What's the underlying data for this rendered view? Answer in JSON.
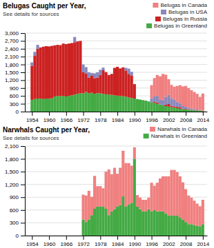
{
  "chart_data": [
    {
      "type": "bar",
      "stacked": true,
      "grid": true,
      "legend": "upper right",
      "title": "Belugas Caught per Year,",
      "subtitle": "See details for sources",
      "x": [
        1954,
        1955,
        1956,
        1957,
        1958,
        1959,
        1960,
        1961,
        1962,
        1963,
        1964,
        1965,
        1966,
        1967,
        1968,
        1969,
        1970,
        1971,
        1972,
        1973,
        1974,
        1975,
        1976,
        1977,
        1978,
        1979,
        1980,
        1981,
        1982,
        1983,
        1984,
        1985,
        1986,
        1987,
        1988,
        1989,
        1990,
        1991,
        1992,
        1993,
        1994,
        1995,
        1996,
        1997,
        1998,
        1999,
        2000,
        2001,
        2002,
        2003,
        2004,
        2005,
        2006,
        2007,
        2008,
        2009,
        2010,
        2011,
        2012,
        2013,
        2014
      ],
      "xlim": [
        1951.5,
        2015.5
      ],
      "xticks": [
        1954,
        1960,
        1966,
        1972,
        1978,
        1984,
        1990,
        1996,
        2002,
        2008,
        2014
      ],
      "ylim": [
        0,
        3000
      ],
      "yticks": [
        0,
        300,
        600,
        900,
        {
          "value": 1200,
          "label": "1,200"
        },
        {
          "value": 1500,
          "label": "1,500"
        },
        {
          "value": 1800,
          "label": "1,800"
        },
        {
          "value": 2100,
          "label": "2,100"
        },
        {
          "value": 2400,
          "label": "2,400"
        },
        {
          "value": 2700,
          "label": "2,700"
        },
        {
          "value": 3000,
          "label": "3,000"
        }
      ],
      "series": [
        {
          "name": "Belugas in Greenland",
          "color": "#44aa44",
          "values": [
            450,
            480,
            500,
            500,
            480,
            500,
            490,
            510,
            580,
            600,
            590,
            600,
            580,
            600,
            620,
            650,
            680,
            700,
            700,
            750,
            700,
            720,
            680,
            700,
            700,
            680,
            660,
            650,
            640,
            620,
            610,
            600,
            590,
            570,
            540,
            520,
            500,
            480,
            460,
            440,
            420,
            390,
            360,
            330,
            300,
            270,
            240,
            210,
            190,
            170,
            150,
            130,
            110,
            90,
            80,
            70,
            60,
            50,
            40,
            30,
            20
          ]
        },
        {
          "name": "Belugas in Russia",
          "color": "#cc2222",
          "values": [
            1300,
            1650,
            1900,
            1950,
            2000,
            2000,
            2000,
            2000,
            1950,
            1950,
            1950,
            2000,
            2000,
            2000,
            2000,
            2000,
            2000,
            2000,
            800,
            700,
            600,
            650,
            600,
            600,
            700,
            900,
            850,
            750,
            800,
            1050,
            1100,
            1050,
            1100,
            1000,
            900,
            850,
            550,
            0,
            0,
            0,
            0,
            0,
            0,
            50,
            50,
            0,
            0,
            50,
            100,
            50,
            50,
            50,
            50,
            20,
            20,
            20,
            10,
            10,
            10,
            10,
            10
          ]
        },
        {
          "name": "Belugas in USA",
          "color": "#8888bb",
          "values": [
            130,
            150,
            150,
            0,
            0,
            0,
            0,
            0,
            0,
            0,
            0,
            0,
            0,
            0,
            0,
            200,
            0,
            0,
            300,
            250,
            200,
            100,
            180,
            200,
            200,
            100,
            0,
            0,
            0,
            0,
            0,
            0,
            0,
            100,
            200,
            150,
            0,
            0,
            0,
            0,
            0,
            0,
            150,
            200,
            250,
            180,
            200,
            300,
            350,
            300,
            250,
            200,
            150,
            100,
            80,
            60,
            50,
            40,
            30,
            20,
            10
          ]
        },
        {
          "name": "Belugas in Canada",
          "color": "#f08080",
          "values": [
            0,
            0,
            0,
            0,
            0,
            0,
            0,
            0,
            0,
            0,
            0,
            0,
            0,
            0,
            0,
            0,
            0,
            0,
            0,
            0,
            0,
            0,
            0,
            0,
            0,
            0,
            0,
            0,
            0,
            0,
            0,
            0,
            0,
            0,
            0,
            0,
            0,
            0,
            0,
            0,
            0,
            0,
            500,
            700,
            800,
            900,
            1000,
            850,
            600,
            500,
            500,
            600,
            700,
            750,
            800,
            750,
            700,
            650,
            600,
            500,
            650
          ]
        }
      ]
    },
    {
      "type": "bar",
      "stacked": true,
      "grid": true,
      "legend": "upper right",
      "title": "Narwhals Caught per Year,",
      "subtitle": "See details for sources",
      "x": [
        1954,
        1955,
        1956,
        1957,
        1958,
        1959,
        1960,
        1961,
        1962,
        1963,
        1964,
        1965,
        1966,
        1967,
        1968,
        1969,
        1970,
        1971,
        1972,
        1973,
        1974,
        1975,
        1976,
        1977,
        1978,
        1979,
        1980,
        1981,
        1982,
        1983,
        1984,
        1985,
        1986,
        1987,
        1988,
        1989,
        1990,
        1991,
        1992,
        1993,
        1994,
        1995,
        1996,
        1997,
        1998,
        1999,
        2000,
        2001,
        2002,
        2003,
        2004,
        2005,
        2006,
        2007,
        2008,
        2009,
        2010,
        2011,
        2012,
        2013,
        2014
      ],
      "xlim": [
        1951.5,
        2015.5
      ],
      "xticks": [
        1954,
        1960,
        1966,
        1972,
        1978,
        1984,
        1990,
        1996,
        2002,
        2008,
        2014
      ],
      "ylim": [
        0,
        2100
      ],
      "yticks": [
        0,
        300,
        600,
        900,
        {
          "value": 1200,
          "label": "1,200"
        },
        {
          "value": 1500,
          "label": "1,500"
        },
        {
          "value": 1800,
          "label": "1,800"
        },
        {
          "value": 2100,
          "label": "2,100"
        }
      ],
      "series": [
        {
          "name": "Narwhals in Greenland",
          "color": "#44aa44",
          "values": [
            0,
            0,
            0,
            0,
            0,
            0,
            0,
            0,
            0,
            0,
            0,
            0,
            0,
            0,
            0,
            0,
            0,
            0,
            380,
            320,
            380,
            480,
            630,
            680,
            680,
            680,
            630,
            480,
            570,
            620,
            680,
            720,
            920,
            680,
            730,
            770,
            1800,
            680,
            620,
            570,
            570,
            620,
            570,
            600,
            570,
            570,
            570,
            520,
            470,
            470,
            470,
            470,
            420,
            380,
            320,
            270,
            270,
            250,
            230,
            220,
            270
          ]
        },
        {
          "name": "Narwhals in Canada",
          "color": "#f08080",
          "values": [
            0,
            0,
            0,
            0,
            0,
            0,
            0,
            0,
            0,
            0,
            0,
            0,
            0,
            0,
            0,
            0,
            0,
            0,
            580,
            620,
            670,
            430,
            770,
            480,
            480,
            430,
            870,
            1070,
            870,
            970,
            770,
            870,
            1070,
            1020,
            970,
            870,
            270,
            270,
            270,
            270,
            270,
            270,
            670,
            570,
            670,
            770,
            820,
            870,
            920,
            1070,
            1070,
            1020,
            970,
            870,
            770,
            670,
            620,
            570,
            520,
            470,
            570
          ]
        }
      ]
    }
  ]
}
